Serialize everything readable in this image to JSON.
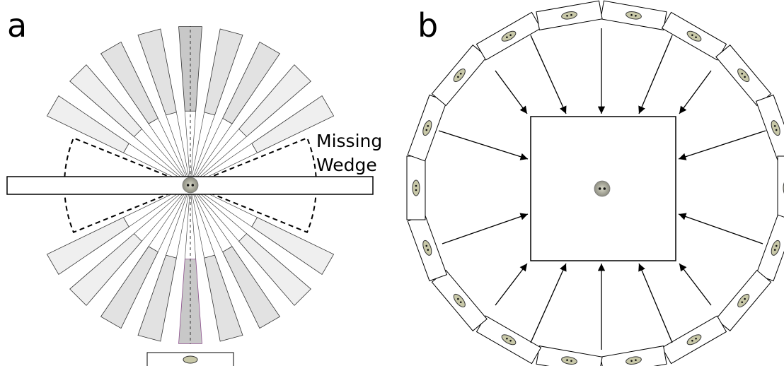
{
  "panel_a": {
    "label": "a",
    "annotation_lines": [
      "Missing",
      "Wedge"
    ]
  },
  "panel_b": {
    "label": "b"
  }
}
